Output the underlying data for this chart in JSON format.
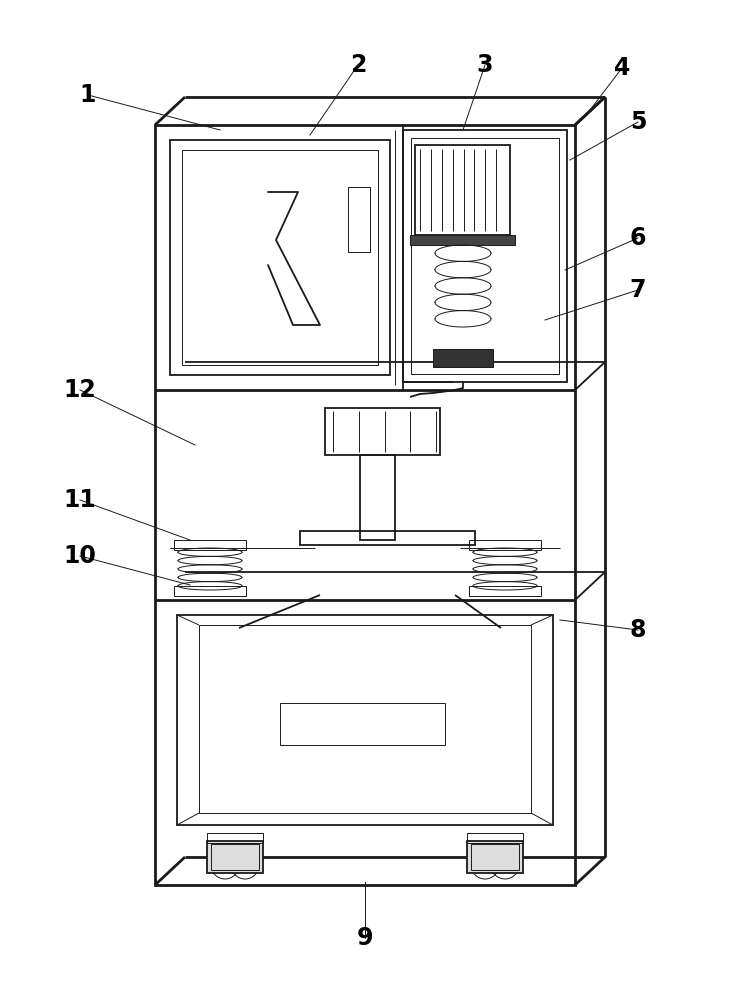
{
  "bg_color": "#ffffff",
  "lc": "#1a1a1a",
  "lw": 1.3,
  "lw_thin": 0.7,
  "lw_thick": 2.0,
  "fig_width": 7.31,
  "fig_height": 10.0,
  "xlim": [
    0,
    731
  ],
  "ylim": [
    0,
    1000
  ]
}
